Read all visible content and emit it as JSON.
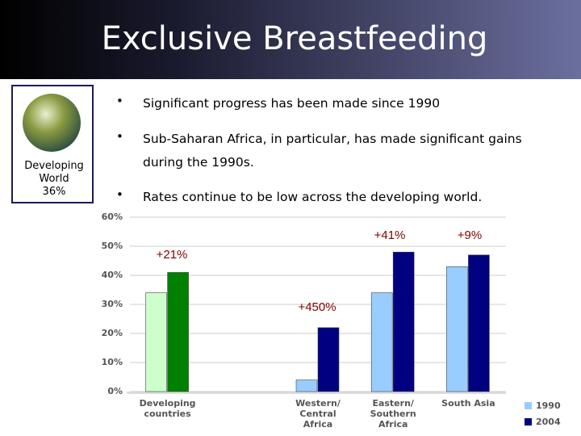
{
  "header": {
    "title": "Exclusive Breastfeeding"
  },
  "sidebar": {
    "label": "Developing\nWorld\n36%"
  },
  "bullets": [
    "Significant progress has been made since 1990",
    "Sub-Saharan Africa, in particular, has made significant gains during the 1990s.",
    "Rates continue to be low across the developing world."
  ],
  "chart_data": {
    "type": "bar",
    "categories": [
      "Developing\ncountries",
      null,
      "Western/\nCentral\nAfrica",
      "Eastern/\nSouthern\nAfrica",
      "South Asia"
    ],
    "series": [
      {
        "name": "1990",
        "color": "#99ccff",
        "colors": [
          "#ccffcc",
          null,
          "#99ccff",
          "#99ccff",
          "#99ccff"
        ],
        "values": [
          34,
          null,
          4,
          34,
          43
        ]
      },
      {
        "name": "2004",
        "color": "#000080",
        "colors": [
          "#008000",
          null,
          "#000080",
          "#000080",
          "#000080"
        ],
        "values": [
          41,
          null,
          22,
          48,
          47
        ]
      }
    ],
    "annotations": [
      "+21%",
      "+450%",
      "+41%",
      "+9%"
    ],
    "ylim": [
      0,
      60
    ],
    "yticks": [
      {
        "value": 0,
        "label": "0%"
      },
      {
        "value": 10,
        "label": "10%"
      },
      {
        "value": 20,
        "label": "20%"
      },
      {
        "value": 30,
        "label": "30%"
      },
      {
        "value": 40,
        "label": "40%"
      },
      {
        "value": 50,
        "label": "50%"
      },
      {
        "value": 60,
        "label": "60%"
      }
    ],
    "grid": true,
    "legend": "bottom-right"
  }
}
